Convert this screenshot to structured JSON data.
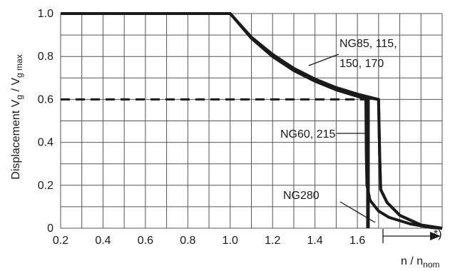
{
  "chart_data": {
    "type": "line",
    "ylabel_main": "Displacement  V",
    "ylabel_sub1": "g",
    "ylabel_mid": " / V",
    "ylabel_sub2": "g max",
    "xlabel_main": "n / n",
    "xlabel_sub": "nom",
    "x_ticks": [
      "0.2",
      "0.4",
      "0.6",
      "0.8",
      "1.0",
      "1.2",
      "1.4",
      "1.6"
    ],
    "y_ticks": [
      "0",
      "0.2",
      "0.4",
      "0.6",
      "0.8",
      "1.0"
    ],
    "xlim": [
      0.2,
      2.0
    ],
    "ylim": [
      0,
      1.0
    ],
    "grid": true,
    "footnote_marker": "*)",
    "series": [
      {
        "name": "NG85, 115, 150, 170",
        "x": [
          0.2,
          1.0,
          1.1,
          1.2,
          1.3,
          1.4,
          1.5,
          1.6,
          1.7,
          1.705,
          1.71,
          1.74,
          1.8,
          1.9,
          2.0
        ],
        "y": [
          1.0,
          1.0,
          0.89,
          0.81,
          0.745,
          0.695,
          0.655,
          0.625,
          0.6,
          0.35,
          0.18,
          0.12,
          0.06,
          0.015,
          0.0
        ]
      },
      {
        "name": "NG60, 215",
        "x": [
          0.2,
          1.0,
          1.1,
          1.2,
          1.3,
          1.4,
          1.5,
          1.6,
          1.7,
          1.705,
          1.71,
          1.74,
          1.8,
          1.9,
          2.0
        ],
        "y": [
          1.0,
          1.0,
          0.885,
          0.8,
          0.735,
          0.685,
          0.645,
          0.615,
          0.6,
          0.35,
          0.18,
          0.12,
          0.06,
          0.015,
          0.0
        ]
      },
      {
        "name": "NG280",
        "x": [
          0.2,
          1.0,
          1.1,
          1.2,
          1.3,
          1.4,
          1.5,
          1.6,
          1.64,
          1.642,
          1.645,
          1.66,
          1.7,
          1.75,
          1.85,
          1.95,
          2.0
        ],
        "y": [
          1.0,
          1.0,
          0.885,
          0.8,
          0.735,
          0.685,
          0.645,
          0.615,
          0.6,
          0.35,
          0.2,
          0.13,
          0.08,
          0.05,
          0.02,
          0.003,
          0.0
        ]
      }
    ],
    "dashed_line": {
      "y": 0.6,
      "x": [
        0.2,
        1.65
      ]
    },
    "vertical_line": {
      "x": 1.65,
      "y": [
        0,
        0.6
      ]
    },
    "annotations": [
      {
        "label": "NG85, 115,",
        "series_name": "NG85, 115, 150, 170"
      },
      {
        "label": "150, 170",
        "series_name": "NG85, 115, 150, 170"
      },
      {
        "label": "NG60, 215",
        "series_name": "NG60, 215"
      },
      {
        "label": "NG280",
        "series_name": "NG280"
      }
    ]
  }
}
